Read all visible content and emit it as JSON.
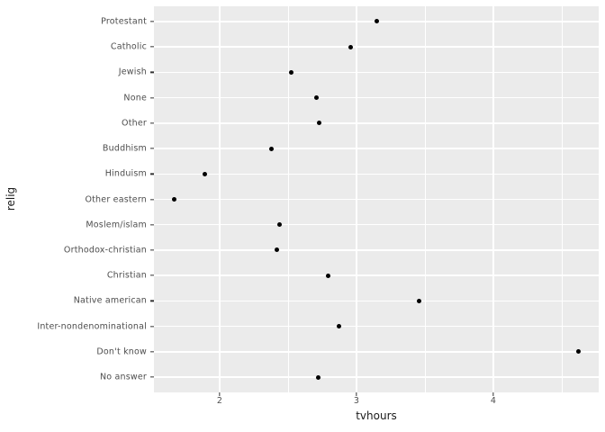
{
  "chart_data": {
    "type": "scatter",
    "style": "ggplot2-theme-grey-dotplot",
    "title": "",
    "xlabel": "tvhours",
    "ylabel": "relig",
    "categories": [
      "Protestant",
      "Catholic",
      "Jewish",
      "None",
      "Other",
      "Buddhism",
      "Hinduism",
      "Other eastern",
      "Moslem/islam",
      "Orthodox-christian",
      "Christian",
      "Native american",
      "Inter-nondenominational",
      "Don't know",
      "No answer"
    ],
    "values": [
      3.15,
      2.96,
      2.52,
      2.71,
      2.73,
      2.38,
      1.89,
      1.67,
      2.44,
      2.42,
      2.79,
      3.46,
      2.87,
      4.62,
      2.72
    ],
    "xlim": [
      1.52,
      4.77
    ],
    "x_major_ticks": [
      2,
      3,
      4
    ],
    "x_major_tick_labels": [
      "2",
      "3",
      "4"
    ],
    "x_minor_ticks": [
      2.5,
      3.5,
      4.5
    ],
    "grid": {
      "x_major": true,
      "x_minor": true,
      "y_major": true,
      "y_minor": false
    },
    "legend_position": "none",
    "colors": {
      "point": "#000000",
      "panel_bg": "#EBEBEB",
      "grid": "#FFFFFF",
      "axis_text": "#4D4D4D",
      "axis_title": "#1A1A1A",
      "tick_mark": "#333333",
      "background": "#FFFFFF"
    }
  }
}
